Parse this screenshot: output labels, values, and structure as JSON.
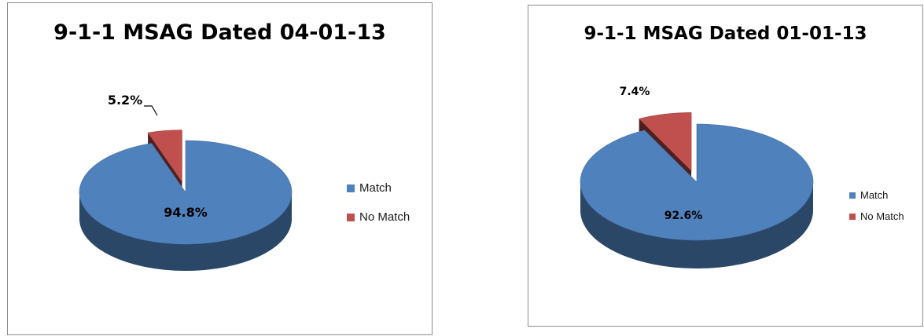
{
  "chart_data": [
    {
      "type": "pie",
      "title": "9-1-1 MSAG Dated 04-01-13",
      "categories": [
        "Match",
        "No Match"
      ],
      "values": [
        94.8,
        5.2
      ],
      "labels": [
        "94.8%",
        "5.2%"
      ],
      "colors": [
        "#4f81bd",
        "#c0504d"
      ],
      "exploded": "No Match",
      "style": "3d",
      "legend": "right"
    },
    {
      "type": "pie",
      "title": "9-1-1 MSAG Dated 01-01-13",
      "categories": [
        "Match",
        "No Match"
      ],
      "values": [
        92.6,
        7.4
      ],
      "labels": [
        "92.6%",
        "7.4%"
      ],
      "colors": [
        "#4f81bd",
        "#c0504d"
      ],
      "exploded": "No Match",
      "style": "3d",
      "legend": "right"
    }
  ]
}
